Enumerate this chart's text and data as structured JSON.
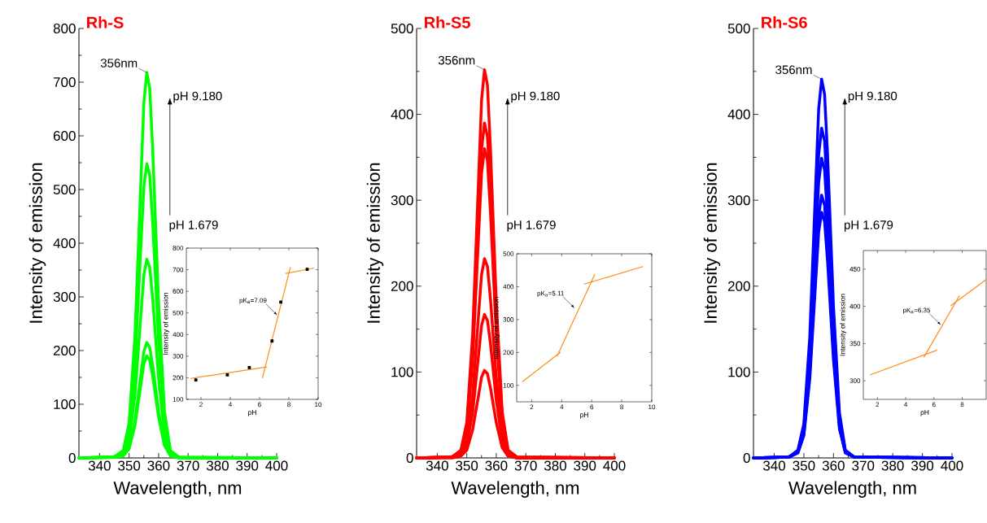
{
  "chart_data": [
    {
      "type": "line",
      "title": "Rh-S",
      "xlabel": "Wavelength, nm",
      "ylabel": "Intensity of emission",
      "x": [
        333,
        345,
        348,
        350,
        352,
        354,
        355,
        356,
        357,
        358,
        360,
        362,
        364,
        367,
        400
      ],
      "xlim": [
        333,
        400
      ],
      "ylim": [
        0,
        800
      ],
      "xticks": [
        340,
        350,
        360,
        370,
        380,
        390,
        400
      ],
      "yticks": [
        0,
        100,
        200,
        300,
        400,
        500,
        600,
        700,
        800
      ],
      "series": [
        {
          "color": "#00ff00",
          "values": [
            0,
            2,
            14,
            65,
            230,
            517,
            661,
            718,
            689,
            574,
            287,
            86,
            14,
            1,
            0
          ]
        },
        {
          "color": "#00ff00",
          "values": [
            0,
            2,
            11,
            49,
            175,
            395,
            504,
            548,
            526,
            438,
            219,
            66,
            11,
            1,
            0
          ]
        },
        {
          "color": "#00ff00",
          "values": [
            0,
            1,
            7,
            33,
            118,
            266,
            340,
            370,
            355,
            296,
            148,
            44,
            7,
            1,
            0
          ]
        },
        {
          "color": "#00ff00",
          "values": [
            0,
            1,
            4,
            19,
            69,
            155,
            198,
            215,
            206,
            172,
            86,
            26,
            4,
            0,
            0
          ]
        },
        {
          "color": "#00ff00",
          "values": [
            0,
            1,
            4,
            17,
            61,
            137,
            175,
            190,
            182,
            152,
            76,
            23,
            4,
            0,
            0
          ]
        }
      ],
      "annotations": [
        {
          "text": "356nm",
          "x": 356,
          "y": 718
        },
        "pH 9.180",
        "pH 1.679"
      ]
    },
    {
      "type": "line",
      "xlabel": "pH",
      "ylabel": "Intensity of emission",
      "xlim": [
        1,
        10
      ],
      "ylim": [
        100,
        800
      ],
      "xticks": [
        2,
        4,
        6,
        8,
        10
      ],
      "yticks": [
        100,
        200,
        300,
        400,
        500,
        600,
        700,
        800
      ],
      "series": [
        {
          "type": "scatter",
          "marker": "square",
          "color": "#000000",
          "x": [
            1.65,
            3.8,
            5.3,
            6.85,
            7.45,
            9.25
          ],
          "values": [
            190,
            213,
            247,
            370,
            550,
            702
          ]
        },
        {
          "color": "#ff8c1a",
          "x": [
            1.3,
            6.5
          ],
          "values": [
            197,
            250
          ]
        },
        {
          "color": "#ff8c1a",
          "x": [
            6.2,
            8.1
          ],
          "values": [
            200,
            710
          ]
        },
        {
          "color": "#ff8c1a",
          "x": [
            7.8,
            9.7
          ],
          "values": [
            683,
            707
          ]
        }
      ],
      "annotations": [
        {
          "text": "pK$_{a}$=7.09",
          "x": 7.2,
          "y": 490
        }
      ]
    },
    {
      "type": "line",
      "title": "Rh-S5",
      "xlabel": "Wavelength, nm",
      "ylabel": "Intensity of emission",
      "x": [
        333,
        345,
        348,
        350,
        352,
        354,
        355,
        356,
        357,
        358,
        360,
        362,
        364,
        367,
        400
      ],
      "xlim": [
        333,
        400
      ],
      "ylim": [
        0,
        500
      ],
      "xticks": [
        340,
        350,
        360,
        370,
        380,
        390,
        400
      ],
      "yticks": [
        0,
        100,
        200,
        300,
        400,
        500
      ],
      "series": [
        {
          "color": "#ff0000",
          "values": [
            0,
            1,
            9,
            41,
            145,
            325,
            416,
            452,
            434,
            362,
            181,
            54,
            9,
            1,
            0
          ]
        },
        {
          "color": "#ff0000",
          "values": [
            0,
            1,
            8,
            35,
            125,
            281,
            359,
            390,
            374,
            312,
            156,
            47,
            8,
            1,
            0
          ]
        },
        {
          "color": "#ff0000",
          "values": [
            0,
            1,
            7,
            32,
            115,
            259,
            331,
            360,
            346,
            288,
            144,
            43,
            7,
            1,
            0
          ]
        },
        {
          "color": "#ff0000",
          "values": [
            0,
            1,
            5,
            21,
            74,
            167,
            213,
            232,
            223,
            186,
            93,
            28,
            5,
            0,
            0
          ]
        },
        {
          "color": "#ff0000",
          "values": [
            0,
            1,
            3,
            15,
            53,
            120,
            154,
            167,
            160,
            134,
            67,
            20,
            3,
            0,
            0
          ]
        },
        {
          "color": "#ff0000",
          "values": [
            0,
            0,
            2,
            9,
            33,
            73,
            94,
            102,
            98,
            82,
            41,
            12,
            2,
            0,
            0
          ]
        }
      ],
      "annotations": [
        {
          "text": "356nm",
          "x": 356,
          "y": 452
        },
        "pH 9.180",
        "pH 1.679"
      ]
    },
    {
      "type": "line",
      "xlabel": "pH",
      "ylabel": "Intensity of emission",
      "xlim": [
        1,
        10
      ],
      "ylim": [
        50,
        500
      ],
      "xticks": [
        2,
        4,
        6,
        8,
        10
      ],
      "yticks": [
        100,
        200,
        300,
        400,
        500
      ],
      "series": [
        {
          "color": "#ff8c1a",
          "x": [
            1.4,
            3.9
          ],
          "values": [
            112,
            200
          ]
        },
        {
          "color": "#ff8c1a",
          "x": [
            3.7,
            6.2
          ],
          "values": [
            190,
            437
          ]
        },
        {
          "color": "#ff8c1a",
          "x": [
            5.5,
            9.4
          ],
          "values": [
            408,
            461
          ]
        }
      ],
      "annotations": [
        {
          "text": "pK$_{a}$=5.11",
          "x": 4.85,
          "y": 335
        }
      ]
    },
    {
      "type": "line",
      "title": "Rh-S6",
      "xlabel": "Wavelength, nm",
      "ylabel": "Intensity of emission",
      "x": [
        333,
        345,
        348,
        350,
        352,
        354,
        355,
        356,
        357,
        358,
        360,
        362,
        364,
        367,
        400
      ],
      "xlim": [
        333,
        400
      ],
      "ylim": [
        0,
        500
      ],
      "xticks": [
        340,
        350,
        360,
        370,
        380,
        390,
        400
      ],
      "yticks": [
        0,
        100,
        200,
        300,
        400,
        500
      ],
      "series": [
        {
          "color": "#0000ff",
          "values": [
            0,
            1,
            9,
            40,
            141,
            318,
            406,
            441,
            423,
            353,
            176,
            53,
            9,
            1,
            0
          ]
        },
        {
          "color": "#0000ff",
          "values": [
            0,
            1,
            8,
            35,
            123,
            276,
            353,
            384,
            369,
            307,
            154,
            46,
            8,
            1,
            0
          ]
        },
        {
          "color": "#0000ff",
          "values": [
            0,
            1,
            7,
            31,
            112,
            251,
            321,
            349,
            335,
            279,
            140,
            42,
            7,
            1,
            0
          ]
        },
        {
          "color": "#0000ff",
          "values": [
            0,
            1,
            6,
            28,
            98,
            220,
            282,
            306,
            294,
            245,
            122,
            37,
            6,
            1,
            0
          ]
        },
        {
          "color": "#0000ff",
          "values": [
            0,
            1,
            6,
            26,
            92,
            206,
            263,
            286,
            275,
            229,
            114,
            34,
            6,
            1,
            0
          ]
        }
      ],
      "annotations": [
        {
          "text": "356nm",
          "x": 356,
          "y": 441
        },
        "pH 9.180",
        "pH 1.679"
      ]
    },
    {
      "type": "line",
      "xlabel": "pH",
      "ylabel": "Intensity of emission",
      "xlim": [
        1,
        9.7
      ],
      "ylim": [
        275,
        475
      ],
      "xticks": [
        2,
        4,
        6,
        8
      ],
      "yticks": [
        300,
        350,
        400,
        450
      ],
      "series": [
        {
          "color": "#ff8c1a",
          "x": [
            1.5,
            6.2
          ],
          "values": [
            308,
            341
          ]
        },
        {
          "color": "#ff8c1a",
          "x": [
            5.3,
            7.8
          ],
          "values": [
            332,
            414
          ]
        },
        {
          "color": "#ff8c1a",
          "x": [
            7.2,
            9.7
          ],
          "values": [
            401,
            436
          ]
        }
      ],
      "annotations": [
        {
          "text": "pK$_{a}$=6.35",
          "x": 6.48,
          "y": 375
        }
      ]
    }
  ]
}
